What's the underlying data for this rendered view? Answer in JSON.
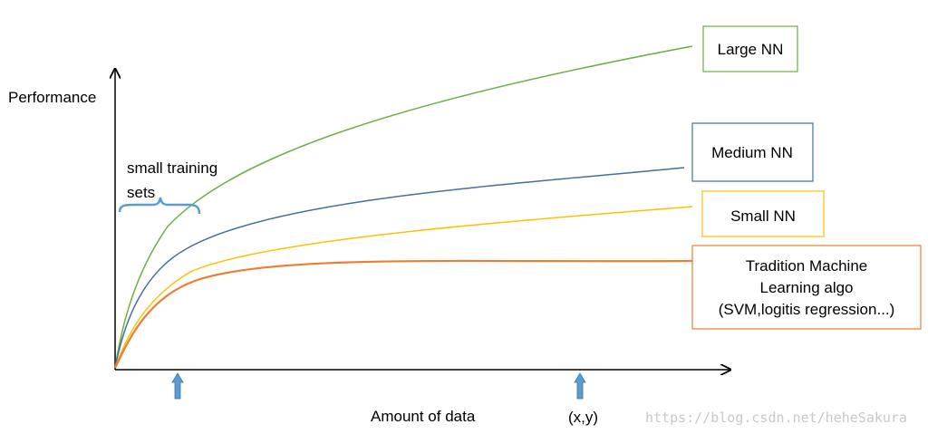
{
  "colors": {
    "large": "#70ad47",
    "medium": "#41719c",
    "small": "#ffc000",
    "traditional": "#ed7d31",
    "axis": "#000000",
    "brace": "#5b9bd5",
    "marker": "#5b9bd5",
    "watermark": "#c8c8c8"
  },
  "axes": {
    "y_label": "Performance",
    "x_label": "Amount of data",
    "point_label": "(x,y)"
  },
  "annotation": {
    "line1": "small training",
    "line2": "sets"
  },
  "legend": {
    "large": "Large NN",
    "medium": "Medium NN",
    "small": "Small NN",
    "traditional_line1": "Tradition Machine",
    "traditional_line2": "Learning  algo",
    "traditional_line3": "(SVM,logitis regression...)"
  },
  "watermark": "https://blog.csdn.net/heheSakura",
  "icons": {
    "marker_small": "up-arrow-icon",
    "marker_point": "up-arrow-icon"
  }
}
